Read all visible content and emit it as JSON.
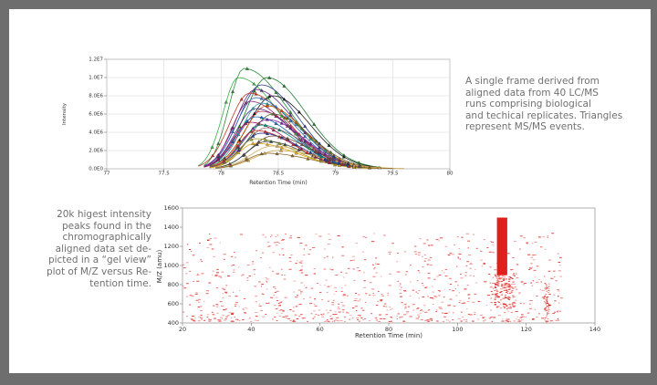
{
  "captions": {
    "top_lines": [
      "A single frame derived from",
      "aligned data from 40 LC/MS",
      "runs comprising biological",
      "and techical replicates.  Triangles",
      "represent MS/MS events."
    ],
    "bottom_lines": [
      "20k higest intensity",
      "peaks found in the",
      "chromographically",
      "aligned data set de-",
      "picted in a “gel view”",
      "plot of M/Z versus Re-",
      "tention time."
    ]
  },
  "colors": {
    "frame": "#6e6e6e",
    "panel": "#ffffff",
    "caption_text": "#707070",
    "gel_peak": "#e0201c",
    "axis": "#777777"
  },
  "chart_data": [
    {
      "type": "line",
      "title": "",
      "xlabel": "Retention Time (min)",
      "ylabel": "Intensity",
      "xlim": [
        77,
        80
      ],
      "ylim": [
        0,
        12000000
      ],
      "x_ticks": [
        77,
        77.5,
        78,
        78.5,
        79,
        79.5,
        80
      ],
      "x_tick_labels": [
        "77",
        "77.5",
        "78",
        "78.5",
        "79",
        "79.5",
        "80"
      ],
      "y_ticks": [
        0,
        2000000,
        4000000,
        6000000,
        8000000,
        10000000,
        12000000
      ],
      "y_tick_labels": [
        "0.0E0",
        "2.0E6",
        "4.0E6",
        "6.0E6",
        "8.0E6",
        "1.0E7",
        "1.2E7"
      ],
      "grid": true,
      "markers": "triangles represent MS/MS events",
      "series": [
        {
          "color": "#2e8b3a",
          "peak_x": 78.2,
          "peak_y": 11000000,
          "x_start": 77.85,
          "x_end": 79.3
        },
        {
          "color": "#3cae4a",
          "peak_x": 78.15,
          "peak_y": 10000000,
          "x_start": 77.8,
          "x_end": 79.2
        },
        {
          "color": "#1f7a2f",
          "peak_x": 78.4,
          "peak_y": 10000000,
          "x_start": 77.9,
          "x_end": 79.4
        },
        {
          "color": "#2d3a8c",
          "peak_x": 78.35,
          "peak_y": 9200000,
          "x_start": 77.85,
          "x_end": 79.3
        },
        {
          "color": "#6a2c8a",
          "peak_x": 78.3,
          "peak_y": 8700000,
          "x_start": 77.85,
          "x_end": 79.3
        },
        {
          "color": "#c0392b",
          "peak_x": 78.25,
          "peak_y": 8300000,
          "x_start": 77.8,
          "x_end": 79.25
        },
        {
          "color": "#1a1a1a",
          "peak_x": 78.45,
          "peak_y": 8000000,
          "x_start": 77.9,
          "x_end": 79.4
        },
        {
          "color": "#3a6fc4",
          "peak_x": 78.3,
          "peak_y": 7800000,
          "x_start": 77.85,
          "x_end": 79.3
        },
        {
          "color": "#8e2b7a",
          "peak_x": 78.25,
          "peak_y": 7400000,
          "x_start": 77.85,
          "x_end": 79.25
        },
        {
          "color": "#2f9e9e",
          "peak_x": 78.35,
          "peak_y": 7200000,
          "x_start": 77.9,
          "x_end": 79.35
        },
        {
          "color": "#d35400",
          "peak_x": 78.4,
          "peak_y": 6900000,
          "x_start": 77.9,
          "x_end": 79.35
        },
        {
          "color": "#4b2a8c",
          "peak_x": 78.3,
          "peak_y": 6600000,
          "x_start": 77.85,
          "x_end": 79.3
        },
        {
          "color": "#b03060",
          "peak_x": 78.35,
          "peak_y": 6300000,
          "x_start": 77.85,
          "x_end": 79.3
        },
        {
          "color": "#556b2f",
          "peak_x": 78.45,
          "peak_y": 6000000,
          "x_start": 77.95,
          "x_end": 79.4
        },
        {
          "color": "#1565c0",
          "peak_x": 78.3,
          "peak_y": 5700000,
          "x_start": 77.85,
          "x_end": 79.3
        },
        {
          "color": "#7b1fa2",
          "peak_x": 78.4,
          "peak_y": 5400000,
          "x_start": 77.9,
          "x_end": 79.35
        },
        {
          "color": "#ad1457",
          "peak_x": 78.25,
          "peak_y": 5100000,
          "x_start": 77.85,
          "x_end": 79.25
        },
        {
          "color": "#00897b",
          "peak_x": 78.35,
          "peak_y": 4800000,
          "x_start": 77.9,
          "x_end": 79.3
        },
        {
          "color": "#8d6e63",
          "peak_x": 78.4,
          "peak_y": 4500000,
          "x_start": 77.9,
          "x_end": 79.4
        },
        {
          "color": "#c62828",
          "peak_x": 78.3,
          "peak_y": 4200000,
          "x_start": 77.9,
          "x_end": 79.3
        },
        {
          "color": "#283593",
          "peak_x": 78.35,
          "peak_y": 3900000,
          "x_start": 77.9,
          "x_end": 79.35
        },
        {
          "color": "#6d4c41",
          "peak_x": 78.45,
          "peak_y": 3600000,
          "x_start": 77.95,
          "x_end": 79.4
        },
        {
          "color": "#9e9d24",
          "peak_x": 78.3,
          "peak_y": 3300000,
          "x_start": 77.9,
          "x_end": 79.3
        },
        {
          "color": "#37474f",
          "peak_x": 78.4,
          "peak_y": 3000000,
          "x_start": 77.95,
          "x_end": 79.35
        },
        {
          "color": "#e6a817",
          "peak_x": 78.3,
          "peak_y": 2800000,
          "x_start": 77.9,
          "x_end": 79.35
        },
        {
          "color": "#d4b06a",
          "peak_x": 78.45,
          "peak_y": 2500000,
          "x_start": 77.95,
          "x_end": 79.5
        },
        {
          "color": "#c9a24a",
          "peak_x": 78.5,
          "peak_y": 2000000,
          "x_start": 77.95,
          "x_end": 79.6
        },
        {
          "color": "#8a6a2a",
          "peak_x": 78.4,
          "peak_y": 1700000,
          "x_start": 77.95,
          "x_end": 79.5
        }
      ]
    },
    {
      "type": "scatter",
      "title": "",
      "xlabel": "Retention Time (min)",
      "ylabel": "M/Z (amu)",
      "xlim": [
        20,
        140
      ],
      "ylim": [
        400,
        1600
      ],
      "x_ticks": [
        20,
        40,
        60,
        80,
        100,
        120,
        140
      ],
      "x_tick_labels": [
        "20",
        "40",
        "60",
        "80",
        "100",
        "120",
        "140"
      ],
      "y_ticks": [
        400,
        600,
        800,
        1000,
        1200,
        1400,
        1600
      ],
      "y_tick_labels": [
        "400",
        "600",
        "800",
        "1000",
        "1200",
        "1400",
        "1600"
      ],
      "grid": false,
      "point_count": 20000,
      "dense_band": {
        "x": [
          111.5,
          114.5
        ],
        "y": [
          900,
          1500
        ]
      },
      "secondary_band": {
        "x": [
          125,
          126.5
        ],
        "y": [
          400,
          820
        ]
      },
      "scatter_region": {
        "x": [
          20,
          130
        ],
        "y": [
          420,
          1340
        ]
      }
    }
  ]
}
